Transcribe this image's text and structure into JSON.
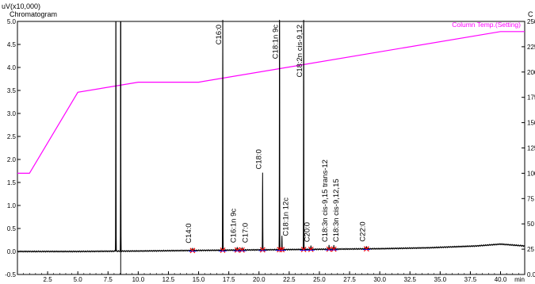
{
  "chart_data": {
    "type": "line",
    "left_axis": {
      "label": "uV(x10,000)",
      "ticks": [
        "5.0",
        "4.5",
        "4.0",
        "3.5",
        "3.0",
        "2.5",
        "2.0",
        "1.5",
        "1.0",
        "0.5",
        "0.0",
        "-0.5"
      ],
      "range": [
        -0.5,
        5.0
      ]
    },
    "right_axis": {
      "label": "C",
      "ticks": [
        "250",
        "225",
        "200",
        "175",
        "150",
        "125",
        "100",
        "75",
        "50",
        "25",
        "0.0"
      ],
      "range": [
        0,
        250
      ]
    },
    "x_axis": {
      "unit": "min",
      "ticks": [
        "2.5",
        "5.0",
        "7.5",
        "10.0",
        "12.5",
        "15.0",
        "17.5",
        "20.0",
        "22.5",
        "25.0",
        "27.5",
        "30.0",
        "32.5",
        "35.0",
        "37.5",
        "40.0"
      ],
      "range": [
        0,
        42
      ]
    },
    "chromatogram_label": "Chromatogram",
    "column_temp_label": "Column Temp.(Setting)",
    "column_temp": {
      "x": [
        0,
        1.0,
        5.0,
        10.0,
        15.0,
        40.0,
        42.0
      ],
      "y": [
        100,
        100,
        180,
        190,
        190,
        240,
        240
      ]
    },
    "baseline": {
      "x": [
        0,
        5,
        10,
        14,
        18,
        22,
        26,
        30,
        34,
        36,
        38,
        40,
        42
      ],
      "y": [
        0.0,
        0.0,
        0.01,
        0.02,
        0.03,
        0.04,
        0.05,
        0.06,
        0.08,
        0.1,
        0.12,
        0.16,
        0.12
      ]
    },
    "peaks": [
      {
        "name": "",
        "rt": 8.15,
        "height": 5.0
      },
      {
        "name": "",
        "rt": 8.55,
        "height": 5.0
      },
      {
        "name": "C14:0",
        "rt": 14.5,
        "height": 0.05
      },
      {
        "name": "C16:0",
        "rt": 17.0,
        "height": 5.0
      },
      {
        "name": "C16:1n 9c",
        "rt": 18.2,
        "height": 0.06
      },
      {
        "name": "C17:0",
        "rt": 18.6,
        "height": 0.04
      },
      {
        "name": "C18:0",
        "rt": 20.3,
        "height": 1.68
      },
      {
        "name": "C18:1n 9c",
        "rt": 21.7,
        "height": 5.0
      },
      {
        "name": "C18:1n 12c",
        "rt": 21.9,
        "height": 0.3
      },
      {
        "name": "C18:2n cis-9,12",
        "rt": 23.7,
        "height": 5.0
      },
      {
        "name": "C20:0",
        "rt": 24.3,
        "height": 0.08
      },
      {
        "name": "C18:3n cis-9,15 trans-12",
        "rt": 25.8,
        "height": 0.1
      },
      {
        "name": "C18:3n cis-9,12,15",
        "rt": 26.2,
        "height": 0.08
      },
      {
        "name": "C22:0",
        "rt": 28.9,
        "height": 0.05
      }
    ],
    "markers_rt": [
      14.5,
      17.0,
      18.2,
      18.6,
      20.3,
      21.7,
      21.9,
      23.7,
      24.3,
      25.8,
      26.2,
      28.9
    ],
    "colors": {
      "chromatogram": "#000000",
      "column_temp": "#ff00ff",
      "marker": "#ff0000",
      "baseline_segment": "#0000ff"
    }
  }
}
